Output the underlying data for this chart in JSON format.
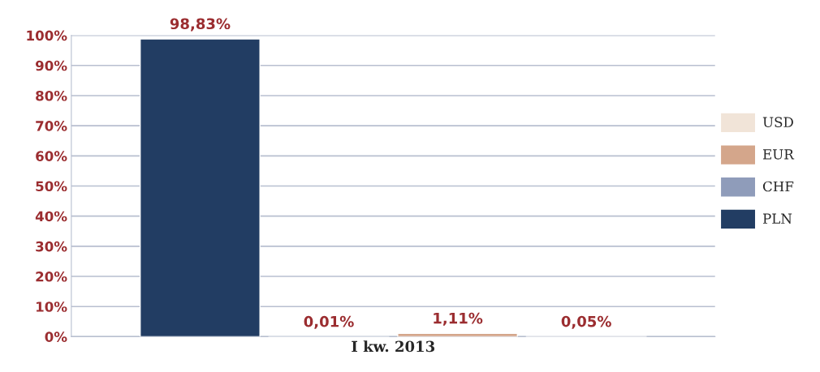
{
  "chart_data": {
    "type": "bar",
    "categories": [
      "I kw. 2013"
    ],
    "series": [
      {
        "name": "PLN",
        "color": "#223d63",
        "values": [
          98.83
        ],
        "value_labels": [
          "98,83%"
        ]
      },
      {
        "name": "CHF",
        "color": "#8f9cba",
        "values": [
          0.01
        ],
        "value_labels": [
          "0,01%"
        ]
      },
      {
        "name": "EUR",
        "color": "#d4a68b",
        "values": [
          1.11
        ],
        "value_labels": [
          "1,11%"
        ]
      },
      {
        "name": "USD",
        "color": "#f1e4d8",
        "values": [
          0.05
        ],
        "value_labels": [
          "0,05%"
        ]
      }
    ],
    "ylim": [
      0,
      100
    ],
    "yticks": [
      {
        "value": 0,
        "label": "0%"
      },
      {
        "value": 10,
        "label": "10%"
      },
      {
        "value": 20,
        "label": "20%"
      },
      {
        "value": 30,
        "label": "30%"
      },
      {
        "value": 40,
        "label": "40%"
      },
      {
        "value": 50,
        "label": "50%"
      },
      {
        "value": 60,
        "label": "60%"
      },
      {
        "value": 70,
        "label": "70%"
      },
      {
        "value": 80,
        "label": "80%"
      },
      {
        "value": 90,
        "label": "90%"
      },
      {
        "value": 100,
        "label": "100%"
      }
    ],
    "grid": "y",
    "legend": "right"
  }
}
